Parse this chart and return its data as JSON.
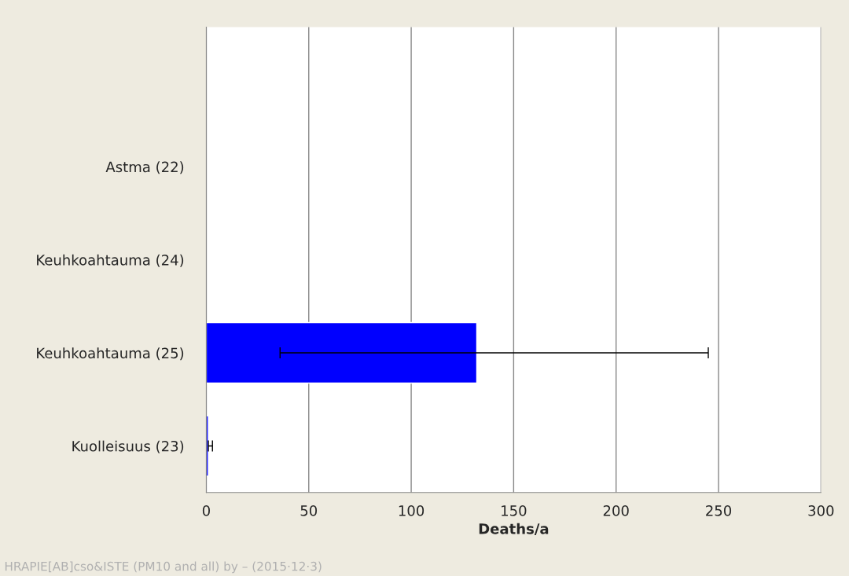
{
  "chart_data": {
    "type": "bar",
    "orientation": "horizontal",
    "categories": [
      null,
      "Astma (22)",
      "Keuhkoahtauma (24)",
      "Keuhkoahtauma (25)",
      "Kuolleisuus (23)"
    ],
    "values": [
      null,
      null,
      null,
      132,
      1
    ],
    "errors": [
      null,
      null,
      null,
      [
        36,
        245
      ],
      [
        1,
        3
      ]
    ],
    "color": "#0000ff",
    "xlim": [
      0,
      300
    ],
    "xticks": [
      0,
      50,
      100,
      150,
      200,
      250,
      300
    ],
    "xlabel": "Deaths/a",
    "grid": "x",
    "annotations": [
      "HRAPIE[AB]cso&ISTE (PM10 and all) by – (2015·12·3)"
    ]
  }
}
